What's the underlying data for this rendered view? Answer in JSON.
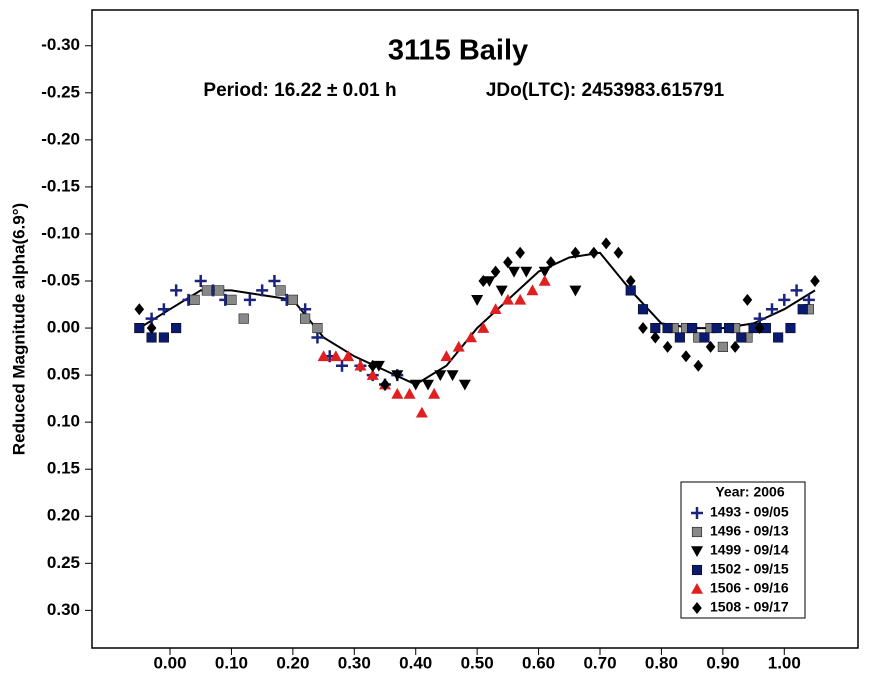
{
  "chart_data": {
    "type": "scatter",
    "title": "3115 Baily",
    "subtitle": "Period: 16.22 ± 0.01 h",
    "subtitle2": "JDo(LTC): 2453983.615791",
    "y_label": "Reduced Magnitude alpha(6.9°)",
    "legend_title": "Year: 2006",
    "legend_position": "lower right",
    "xlim": [
      -0.127,
      1.12
    ],
    "ylim": [
      0.34,
      -0.338
    ],
    "xticks": [
      {
        "value": 0,
        "label": "0.00"
      },
      {
        "value": 0.1,
        "label": "0.10"
      },
      {
        "value": 0.2,
        "label": "0.20"
      },
      {
        "value": 0.3,
        "label": "0.30"
      },
      {
        "value": 0.4,
        "label": "0.40"
      },
      {
        "value": 0.5,
        "label": "0.50"
      },
      {
        "value": 0.6,
        "label": "0.60"
      },
      {
        "value": 0.7,
        "label": "0.70"
      },
      {
        "value": 0.8,
        "label": "0.80"
      },
      {
        "value": 0.9,
        "label": "0.90"
      },
      {
        "value": 1,
        "label": "1.00"
      }
    ],
    "yticks": [
      {
        "value": -0.3,
        "label": "-0.30"
      },
      {
        "value": -0.25,
        "label": "-0.25"
      },
      {
        "value": -0.2,
        "label": "-0.20"
      },
      {
        "value": -0.15,
        "label": "-0.15"
      },
      {
        "value": -0.1,
        "label": "-0.10"
      },
      {
        "value": -0.05,
        "label": "-0.05"
      },
      {
        "value": 0,
        "label": "0.00"
      },
      {
        "value": 0.05,
        "label": "0.05"
      },
      {
        "value": 0.1,
        "label": "0.10"
      },
      {
        "value": 0.15,
        "label": "0.15"
      },
      {
        "value": 0.2,
        "label": "0.20"
      },
      {
        "value": 0.25,
        "label": "0.25"
      },
      {
        "value": 0.3,
        "label": "0.30"
      }
    ],
    "series": [
      {
        "name": "1493 - 09/05",
        "marker": "plus",
        "color": "#1a237e",
        "x": [
          -0.03,
          -0.01,
          0.01,
          0.03,
          0.05,
          0.07,
          0.09,
          0.13,
          0.15,
          0.17,
          0.19,
          0.22,
          0.24,
          0.26,
          0.28,
          0.31,
          0.33,
          0.35,
          0.37,
          0.96,
          0.98,
          1.0,
          1.02,
          1.04
        ],
        "values": [
          -0.01,
          -0.02,
          -0.04,
          -0.03,
          -0.05,
          -0.04,
          -0.03,
          -0.03,
          -0.04,
          -0.05,
          -0.03,
          -0.02,
          0.01,
          0.03,
          0.04,
          0.04,
          0.05,
          0.06,
          0.05,
          -0.01,
          -0.02,
          -0.03,
          -0.04,
          -0.03
        ]
      },
      {
        "name": "1496 - 09/13",
        "marker": "square",
        "color": "#888888",
        "x": [
          0.04,
          0.06,
          0.08,
          0.1,
          0.12,
          0.18,
          0.2,
          0.22,
          0.24,
          0.82,
          0.84,
          0.86,
          0.88,
          0.9,
          0.92,
          0.94,
          1.04
        ],
        "values": [
          -0.03,
          -0.04,
          -0.04,
          -0.03,
          -0.01,
          -0.04,
          -0.03,
          -0.01,
          0.0,
          0.0,
          0.0,
          0.01,
          0.0,
          0.02,
          0.0,
          0.01,
          -0.02
        ]
      },
      {
        "name": "1499 - 09/14",
        "marker": "triangle-down",
        "color": "#000000",
        "x": [
          0.34,
          0.37,
          0.4,
          0.42,
          0.44,
          0.46,
          0.48,
          0.5,
          0.52,
          0.54,
          0.56,
          0.58,
          0.61,
          0.66
        ],
        "values": [
          0.04,
          0.05,
          0.06,
          0.06,
          0.05,
          0.05,
          0.06,
          -0.03,
          -0.05,
          -0.04,
          -0.06,
          -0.06,
          -0.06,
          -0.04
        ]
      },
      {
        "name": "1502 - 09/15",
        "marker": "square",
        "color": "#0a1a6e",
        "x": [
          -0.05,
          -0.03,
          -0.01,
          0.01,
          0.75,
          0.77,
          0.79,
          0.81,
          0.83,
          0.85,
          0.87,
          0.89,
          0.91,
          0.93,
          0.95,
          0.97,
          0.99,
          1.01,
          1.03
        ],
        "values": [
          0.0,
          0.01,
          0.01,
          0.0,
          -0.04,
          -0.02,
          0.0,
          0.0,
          0.01,
          0.0,
          0.01,
          0.0,
          0.0,
          0.01,
          0.0,
          0.0,
          0.01,
          0.0,
          -0.02
        ]
      },
      {
        "name": "1506 - 09/16",
        "marker": "triangle-up",
        "color": "#e02020",
        "x": [
          0.25,
          0.27,
          0.29,
          0.31,
          0.33,
          0.35,
          0.37,
          0.39,
          0.41,
          0.43,
          0.45,
          0.47,
          0.49,
          0.51,
          0.53,
          0.55,
          0.57,
          0.59,
          0.61
        ],
        "values": [
          0.03,
          0.03,
          0.03,
          0.04,
          0.05,
          0.06,
          0.07,
          0.07,
          0.09,
          0.07,
          0.03,
          0.02,
          0.01,
          0.0,
          -0.02,
          -0.03,
          -0.03,
          -0.04,
          -0.05
        ]
      },
      {
        "name": "1508 - 09/17",
        "marker": "diamond",
        "color": "#000000",
        "x": [
          -0.05,
          -0.03,
          0.33,
          0.35,
          0.51,
          0.53,
          0.55,
          0.57,
          0.62,
          0.66,
          0.69,
          0.71,
          0.73,
          0.75,
          0.77,
          0.79,
          0.81,
          0.84,
          0.86,
          0.88,
          0.92,
          0.94,
          0.96,
          1.05
        ],
        "values": [
          -0.02,
          0.0,
          0.04,
          0.06,
          -0.05,
          -0.06,
          -0.07,
          -0.08,
          -0.07,
          -0.08,
          -0.08,
          -0.09,
          -0.08,
          -0.05,
          0.0,
          0.01,
          0.02,
          0.03,
          0.04,
          0.02,
          0.02,
          -0.03,
          0.0,
          -0.05
        ]
      }
    ],
    "fit": {
      "color": "#000000",
      "x": [
        -0.05,
        0,
        0.05,
        0.1,
        0.15,
        0.2,
        0.25,
        0.3,
        0.35,
        0.4,
        0.45,
        0.5,
        0.55,
        0.6,
        0.65,
        0.7,
        0.75,
        0.8,
        0.85,
        0.9,
        0.95,
        1,
        1.05
      ],
      "values": [
        0.0,
        -0.02,
        -0.04,
        -0.04,
        -0.035,
        -0.03,
        0.01,
        0.03,
        0.045,
        0.06,
        0.04,
        0.0,
        -0.03,
        -0.06,
        -0.075,
        -0.08,
        -0.04,
        -0.005,
        0.0,
        0.0,
        -0.005,
        -0.02,
        -0.04
      ]
    }
  }
}
